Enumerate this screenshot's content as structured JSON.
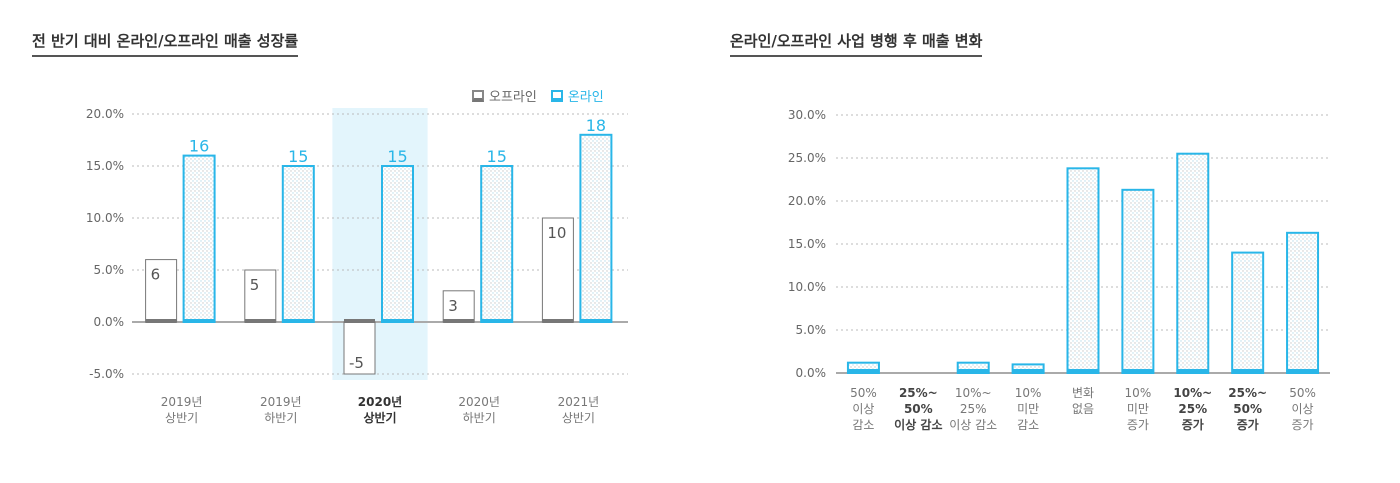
{
  "colors": {
    "online": "#29b6e8",
    "offline": "#777777",
    "grid": "#bbbbbb",
    "highlight": "#e3f5fc"
  },
  "legend": {
    "offline": "오프라인",
    "online": "온라인"
  },
  "chart_data": [
    {
      "type": "bar",
      "title": "전 반기 대비 온라인/오프라인 매출 성장률",
      "categories": [
        [
          "2019년",
          "상반기"
        ],
        [
          "2019년",
          "하반기"
        ],
        [
          "2020년",
          "상반기"
        ],
        [
          "2020년",
          "하반기"
        ],
        [
          "2021년",
          "상반기"
        ]
      ],
      "highlight_category_index": 2,
      "series": [
        {
          "name": "오프라인",
          "values": [
            6,
            5,
            -5,
            3,
            10
          ]
        },
        {
          "name": "온라인",
          "values": [
            16,
            15,
            15,
            15,
            18
          ]
        }
      ],
      "ylim": [
        -5,
        20
      ],
      "yticks": [
        "-5.0%",
        "0.0%",
        "5.0%",
        "10.0%",
        "15.0%",
        "20.0%"
      ],
      "ytick_values": [
        -5,
        0,
        5,
        10,
        15,
        20
      ],
      "grid": true,
      "legend_position": "top-right"
    },
    {
      "type": "bar",
      "title": "온라인/오프라인 사업 병행 후 매출 변화",
      "categories": [
        [
          "50%",
          "이상",
          "감소"
        ],
        [
          "25%~",
          "50%",
          "이상 감소"
        ],
        [
          "10%~",
          "25%",
          "이상 감소"
        ],
        [
          "10%",
          "미만",
          "감소"
        ],
        [
          "변화",
          "없음"
        ],
        [
          "10%",
          "미만",
          "증가"
        ],
        [
          "10%~",
          "25%",
          "증가"
        ],
        [
          "25%~",
          "50%",
          "증가"
        ],
        [
          "50%",
          "이상",
          "증가"
        ]
      ],
      "values": [
        1.2,
        0,
        1.2,
        1.0,
        23.8,
        21.3,
        25.5,
        14.0,
        16.3
      ],
      "ylim": [
        0,
        30
      ],
      "yticks": [
        "0.0%",
        "5.0%",
        "10.0%",
        "15.0%",
        "20.0%",
        "25.0%",
        "30.0%"
      ],
      "ytick_values": [
        0,
        5,
        10,
        15,
        20,
        25,
        30
      ],
      "grid": true
    }
  ]
}
